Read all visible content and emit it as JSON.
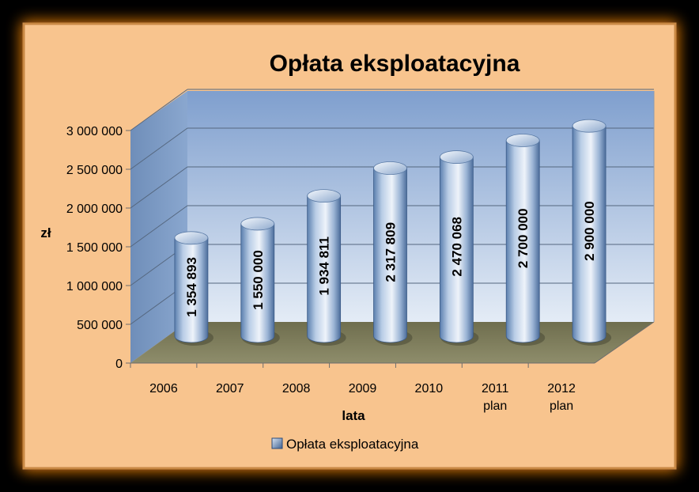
{
  "chart_data": {
    "type": "bar",
    "title": "Opłata eksploatacyjna",
    "xlabel": "lata",
    "ylabel": "zł",
    "categories": [
      [
        "2006"
      ],
      [
        "2007"
      ],
      [
        "2008"
      ],
      [
        "2009"
      ],
      [
        "2010"
      ],
      [
        "2011",
        "plan"
      ],
      [
        "2012",
        "plan"
      ]
    ],
    "series": [
      {
        "name": "Opłata eksploatacyjna",
        "values": [
          1354893,
          1550000,
          1934811,
          2317809,
          2470068,
          2700000,
          2900000
        ],
        "value_labels": [
          "1 354 893",
          "1 550 000",
          "1 934 811",
          "2 317 809",
          "2 470 068",
          "2 700 000",
          "2 900 000"
        ],
        "color": "#a8bfdc"
      }
    ],
    "ylim": [
      0,
      3000000
    ],
    "y_ticks": [
      0,
      500000,
      1000000,
      1500000,
      2000000,
      2500000,
      3000000
    ],
    "y_tick_labels": [
      "0",
      "500 000",
      "1 000 000",
      "1 500 000",
      "2 000 000",
      "2 500 000",
      "3 000 000"
    ],
    "grid": true,
    "legend_position": "bottom",
    "colors": {
      "chart_area": "#f8c48e",
      "frame_border": "#c98945",
      "glow": "#ff9a20",
      "wall_top": "#7f9fce",
      "wall_bottom": "#e4ecf6",
      "floor": "#7e7d5d",
      "bar_light": "#e8f0fa",
      "bar_dark": "#4a6f9e"
    }
  }
}
